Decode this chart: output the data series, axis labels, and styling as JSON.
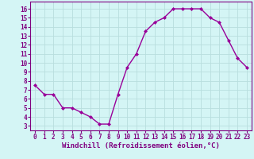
{
  "x": [
    0,
    1,
    2,
    3,
    4,
    5,
    6,
    7,
    8,
    9,
    10,
    11,
    12,
    13,
    14,
    15,
    16,
    17,
    18,
    19,
    20,
    21,
    22,
    23
  ],
  "y": [
    7.5,
    6.5,
    6.5,
    5.0,
    5.0,
    4.5,
    4.0,
    3.2,
    3.2,
    6.5,
    9.5,
    11.0,
    13.5,
    14.5,
    15.0,
    16.0,
    16.0,
    16.0,
    16.0,
    15.0,
    14.5,
    12.5,
    10.5,
    9.5
  ],
  "line_color": "#990099",
  "marker": "D",
  "marker_size": 2,
  "xlabel": "Windchill (Refroidissement éolien,°C)",
  "xlim": [
    -0.5,
    23.5
  ],
  "ylim": [
    2.5,
    16.8
  ],
  "yticks": [
    3,
    4,
    5,
    6,
    7,
    8,
    9,
    10,
    11,
    12,
    13,
    14,
    15,
    16
  ],
  "xticks": [
    0,
    1,
    2,
    3,
    4,
    5,
    6,
    7,
    8,
    9,
    10,
    11,
    12,
    13,
    14,
    15,
    16,
    17,
    18,
    19,
    20,
    21,
    22,
    23
  ],
  "bg_color": "#d4f5f5",
  "grid_color": "#b8dede",
  "tick_label_size": 5.5,
  "xlabel_size": 6.5,
  "line_width": 1.0,
  "label_color": "#800080"
}
